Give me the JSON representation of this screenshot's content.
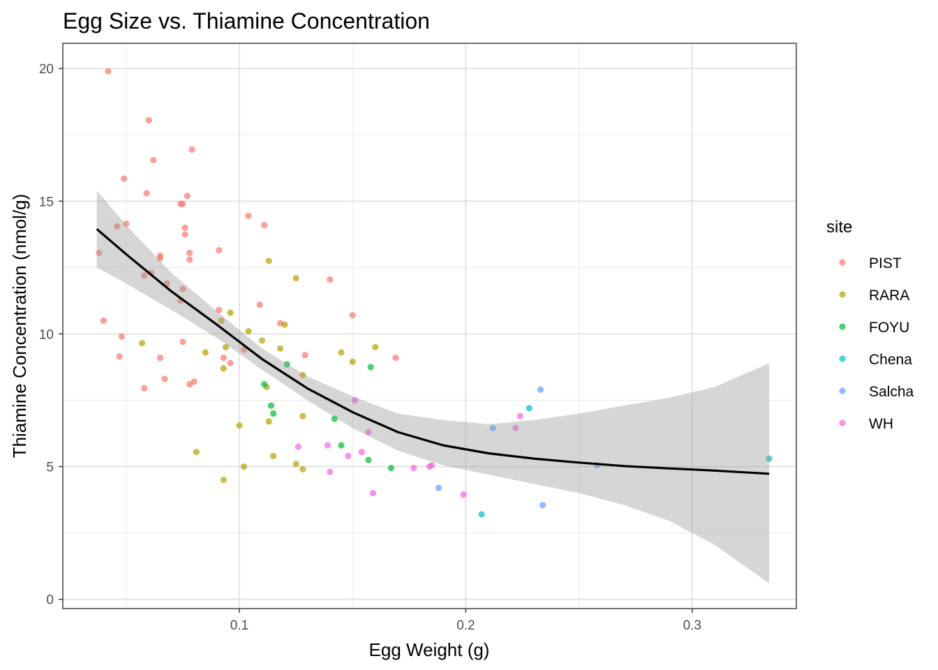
{
  "chart_data": {
    "type": "scatter",
    "title": "Egg Size vs. Thiamine Concentration",
    "xlabel": "Egg Weight (g)",
    "ylabel": "Thiamine Concentration (nmol/g)",
    "xlim": [
      0.022,
      0.346
    ],
    "ylim": [
      -0.35,
      20.95
    ],
    "x_ticks": [
      {
        "value": 0.1,
        "label": "0.1"
      },
      {
        "value": 0.2,
        "label": "0.2"
      },
      {
        "value": 0.3,
        "label": "0.3"
      }
    ],
    "y_ticks": [
      {
        "value": 0,
        "label": "0"
      },
      {
        "value": 5,
        "label": "5"
      },
      {
        "value": 10,
        "label": "10"
      },
      {
        "value": 15,
        "label": "15"
      },
      {
        "value": 20,
        "label": "20"
      }
    ],
    "grid": true,
    "legend": {
      "title": "site",
      "position": "right"
    },
    "series": [
      {
        "name": "PIST",
        "color": "#F8766D",
        "points": [
          [
            0.038,
            13.05
          ],
          [
            0.042,
            19.9
          ],
          [
            0.04,
            10.5
          ],
          [
            0.046,
            14.05
          ],
          [
            0.048,
            9.9
          ],
          [
            0.049,
            15.85
          ],
          [
            0.047,
            9.15
          ],
          [
            0.05,
            14.15
          ],
          [
            0.058,
            12.2
          ],
          [
            0.059,
            15.3
          ],
          [
            0.06,
            18.05
          ],
          [
            0.061,
            12.3
          ],
          [
            0.062,
            16.55
          ],
          [
            0.065,
            12.95
          ],
          [
            0.065,
            12.85
          ],
          [
            0.065,
            9.1
          ],
          [
            0.058,
            7.95
          ],
          [
            0.067,
            8.3
          ],
          [
            0.068,
            11.9
          ],
          [
            0.074,
            11.25
          ],
          [
            0.075,
            14.9
          ],
          [
            0.074,
            14.9
          ],
          [
            0.075,
            11.7
          ],
          [
            0.076,
            14.0
          ],
          [
            0.076,
            13.75
          ],
          [
            0.077,
            15.2
          ],
          [
            0.078,
            13.05
          ],
          [
            0.078,
            12.8
          ],
          [
            0.075,
            9.7
          ],
          [
            0.078,
            8.1
          ],
          [
            0.079,
            16.95
          ],
          [
            0.08,
            8.2
          ],
          [
            0.091,
            10.9
          ],
          [
            0.091,
            13.15
          ],
          [
            0.093,
            9.1
          ],
          [
            0.096,
            8.9
          ],
          [
            0.102,
            9.4
          ],
          [
            0.104,
            14.45
          ],
          [
            0.109,
            11.1
          ],
          [
            0.111,
            14.1
          ],
          [
            0.118,
            10.4
          ],
          [
            0.129,
            9.2
          ],
          [
            0.14,
            12.05
          ],
          [
            0.15,
            10.7
          ],
          [
            0.169,
            9.1
          ]
        ]
      },
      {
        "name": "RARA",
        "color": "#B79F00",
        "points": [
          [
            0.057,
            9.65
          ],
          [
            0.081,
            5.55
          ],
          [
            0.085,
            9.3
          ],
          [
            0.092,
            10.5
          ],
          [
            0.093,
            8.7
          ],
          [
            0.093,
            4.5
          ],
          [
            0.094,
            9.5
          ],
          [
            0.096,
            10.8
          ],
          [
            0.1,
            6.55
          ],
          [
            0.102,
            5.0
          ],
          [
            0.104,
            10.1
          ],
          [
            0.11,
            9.75
          ],
          [
            0.112,
            8.0
          ],
          [
            0.113,
            6.7
          ],
          [
            0.113,
            12.75
          ],
          [
            0.115,
            5.4
          ],
          [
            0.118,
            9.45
          ],
          [
            0.12,
            10.35
          ],
          [
            0.125,
            12.1
          ],
          [
            0.125,
            5.1
          ],
          [
            0.128,
            4.9
          ],
          [
            0.128,
            8.45
          ],
          [
            0.128,
            6.9
          ],
          [
            0.145,
            9.3
          ],
          [
            0.15,
            8.95
          ],
          [
            0.16,
            9.5
          ]
        ]
      },
      {
        "name": "FOYU",
        "color": "#00BA38",
        "points": [
          [
            0.111,
            8.1
          ],
          [
            0.114,
            7.3
          ],
          [
            0.115,
            7.0
          ],
          [
            0.121,
            8.85
          ],
          [
            0.142,
            6.8
          ],
          [
            0.145,
            5.8
          ],
          [
            0.157,
            5.25
          ],
          [
            0.158,
            8.75
          ],
          [
            0.167,
            4.95
          ]
        ]
      },
      {
        "name": "Chena",
        "color": "#00BFC4",
        "points": [
          [
            0.207,
            3.2
          ],
          [
            0.228,
            7.2
          ],
          [
            0.334,
            5.3
          ]
        ]
      },
      {
        "name": "Salcha",
        "color": "#619CFF",
        "points": [
          [
            0.188,
            4.2
          ],
          [
            0.212,
            6.45
          ],
          [
            0.233,
            7.9
          ],
          [
            0.234,
            3.55
          ],
          [
            0.258,
            5.05
          ]
        ]
      },
      {
        "name": "WH",
        "color": "#F564E3",
        "points": [
          [
            0.126,
            5.75
          ],
          [
            0.139,
            5.8
          ],
          [
            0.14,
            4.8
          ],
          [
            0.148,
            5.4
          ],
          [
            0.151,
            7.5
          ],
          [
            0.154,
            5.55
          ],
          [
            0.157,
            6.3
          ],
          [
            0.159,
            4.0
          ],
          [
            0.177,
            4.95
          ],
          [
            0.184,
            5.0
          ],
          [
            0.185,
            5.05
          ],
          [
            0.199,
            3.95
          ],
          [
            0.222,
            6.45
          ],
          [
            0.224,
            6.9
          ]
        ]
      }
    ],
    "smooth": {
      "color": "#000000",
      "band_color": "#999999",
      "x": [
        0.037,
        0.05,
        0.07,
        0.09,
        0.11,
        0.13,
        0.15,
        0.17,
        0.19,
        0.21,
        0.23,
        0.25,
        0.27,
        0.29,
        0.31,
        0.334
      ],
      "fit": [
        13.95,
        13.0,
        11.6,
        10.35,
        9.05,
        7.95,
        7.05,
        6.3,
        5.8,
        5.5,
        5.3,
        5.15,
        5.02,
        4.93,
        4.85,
        4.73
      ],
      "lower": [
        12.5,
        11.9,
        10.9,
        9.85,
        8.65,
        7.5,
        6.45,
        5.6,
        5.05,
        4.7,
        4.35,
        4.0,
        3.55,
        2.95,
        2.05,
        0.6
      ],
      "upper": [
        15.4,
        14.1,
        12.3,
        10.85,
        9.45,
        8.4,
        7.65,
        7.0,
        6.75,
        6.6,
        6.75,
        7.0,
        7.3,
        7.6,
        8.0,
        8.9
      ]
    }
  }
}
